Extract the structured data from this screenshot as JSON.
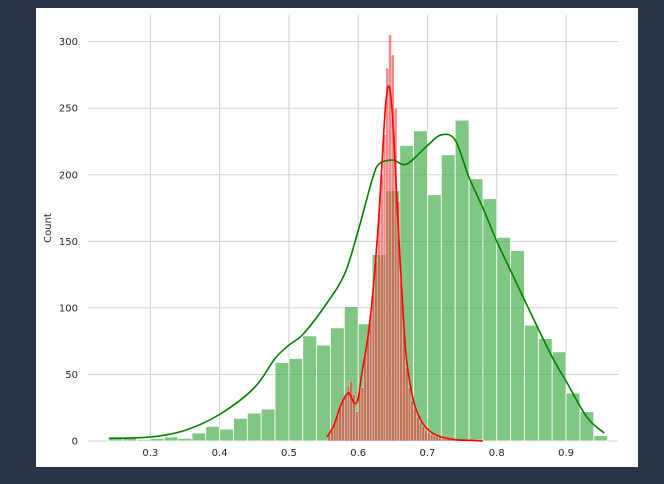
{
  "chart_data": {
    "type": "histogram",
    "title": "",
    "xlabel": "",
    "ylabel": "Count",
    "xlim": [
      0.21,
      0.975
    ],
    "ylim": [
      0,
      320
    ],
    "xticks": [
      0.3,
      0.4,
      0.5,
      0.6,
      0.7,
      0.8,
      0.9
    ],
    "yticks": [
      0,
      50,
      100,
      150,
      200,
      250,
      300
    ],
    "grid": true,
    "legend": "none",
    "series": [
      {
        "color": "#4caf50",
        "kde_color": "#008000",
        "bin_width": 0.02,
        "bins_start": [
          0.24,
          0.26,
          0.28,
          0.3,
          0.32,
          0.34,
          0.36,
          0.38,
          0.4,
          0.42,
          0.44,
          0.46,
          0.48,
          0.5,
          0.52,
          0.54,
          0.56,
          0.58,
          0.6,
          0.62,
          0.64,
          0.66,
          0.68,
          0.7,
          0.72,
          0.74,
          0.76,
          0.78,
          0.8,
          0.82,
          0.84,
          0.86,
          0.88,
          0.9,
          0.92,
          0.94
        ],
        "counts": [
          3,
          3,
          1,
          2,
          3,
          2,
          6,
          11,
          9,
          17,
          21,
          24,
          59,
          62,
          79,
          72,
          85,
          101,
          88,
          140,
          188,
          222,
          233,
          185,
          215,
          241,
          197,
          182,
          153,
          143,
          87,
          77,
          67,
          36,
          22,
          4
        ],
        "kde_x": [
          0.24,
          0.3,
          0.35,
          0.4,
          0.45,
          0.48,
          0.5,
          0.52,
          0.55,
          0.58,
          0.6,
          0.62,
          0.63,
          0.65,
          0.67,
          0.7,
          0.72,
          0.74,
          0.76,
          0.78,
          0.8,
          0.82,
          0.85,
          0.88,
          0.9,
          0.93,
          0.955
        ],
        "kde_y": [
          2,
          3,
          8,
          20,
          40,
          62,
          72,
          80,
          100,
          125,
          158,
          196,
          208,
          211,
          208,
          222,
          230,
          226,
          198,
          175,
          150,
          128,
          95,
          63,
          45,
          18,
          6
        ]
      },
      {
        "color": "#e53935",
        "kde_color": "#ff0000",
        "bin_width": 0.004,
        "bins_start": [
          0.556,
          0.56,
          0.564,
          0.568,
          0.572,
          0.576,
          0.58,
          0.584,
          0.588,
          0.592,
          0.596,
          0.6,
          0.604,
          0.608,
          0.612,
          0.616,
          0.62,
          0.624,
          0.628,
          0.632,
          0.636,
          0.64,
          0.644,
          0.648,
          0.652,
          0.656,
          0.66,
          0.664,
          0.668,
          0.672,
          0.676,
          0.68,
          0.684,
          0.688,
          0.692,
          0.696,
          0.7,
          0.704,
          0.708,
          0.712,
          0.716,
          0.72,
          0.724,
          0.728,
          0.732,
          0.736,
          0.74,
          0.744,
          0.748,
          0.752,
          0.756,
          0.76,
          0.764,
          0.768,
          0.772,
          0.776
        ],
        "counts": [
          5,
          8,
          15,
          20,
          25,
          30,
          35,
          42,
          45,
          35,
          22,
          38,
          40,
          65,
          80,
          95,
          110,
          135,
          170,
          200,
          230,
          280,
          305,
          290,
          250,
          180,
          120,
          80,
          55,
          40,
          30,
          24,
          18,
          14,
          11,
          8,
          6,
          5,
          4,
          3,
          3,
          2,
          2,
          2,
          1,
          1,
          1,
          1,
          1,
          1,
          1,
          1,
          0,
          0,
          1,
          1
        ],
        "kde_x": [
          0.555,
          0.565,
          0.575,
          0.585,
          0.59,
          0.595,
          0.6,
          0.605,
          0.61,
          0.615,
          0.62,
          0.625,
          0.63,
          0.635,
          0.64,
          0.645,
          0.65,
          0.655,
          0.66,
          0.665,
          0.67,
          0.68,
          0.69,
          0.7,
          0.71,
          0.72,
          0.74,
          0.76,
          0.78
        ],
        "kde_y": [
          3,
          12,
          27,
          36,
          33,
          28,
          32,
          50,
          65,
          82,
          105,
          135,
          170,
          215,
          255,
          266,
          240,
          190,
          140,
          95,
          60,
          30,
          16,
          9,
          5,
          3,
          1,
          0.5,
          0
        ]
      }
    ]
  }
}
